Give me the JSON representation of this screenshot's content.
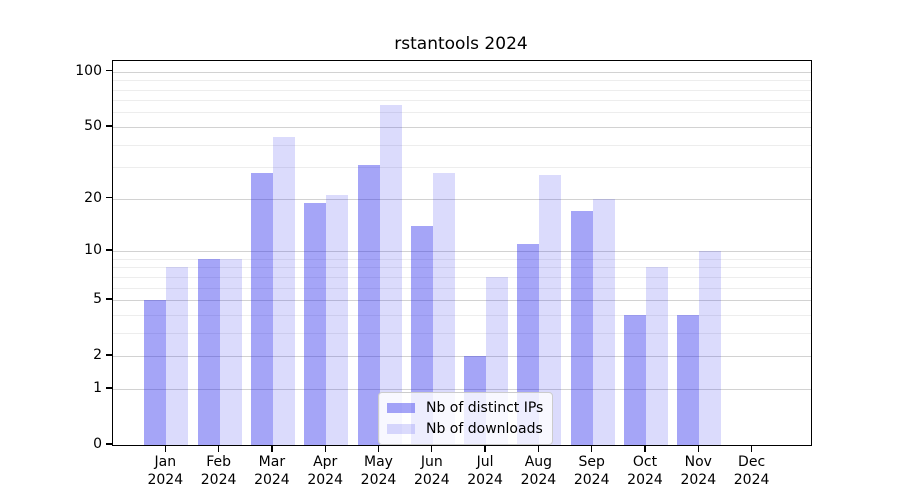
{
  "title": "rstantools 2024",
  "legend": {
    "items": [
      {
        "label": "Nb of distinct IPs"
      },
      {
        "label": "Nb of downloads"
      }
    ]
  },
  "colors": {
    "bar_dark": "rgba(30,30,235,0.40)",
    "bar_dark_hex": "#a5a5f7",
    "bar_light": "rgba(30,30,235,0.16)",
    "bar_light_hex": "#dbdbfc",
    "grid_major": "#d2d2d2",
    "grid_minor": "#ededed",
    "spine": "#000000"
  },
  "chart_data": {
    "type": "bar",
    "title": "rstantools 2024",
    "xlabel": "",
    "ylabel": "",
    "yscale": "log1p",
    "categories": [
      "Jan 2024",
      "Feb 2024",
      "Mar 2024",
      "Apr 2024",
      "May 2024",
      "Jun 2024",
      "Jul 2024",
      "Aug 2024",
      "Sep 2024",
      "Oct 2024",
      "Nov 2024",
      "Dec 2024"
    ],
    "series": [
      {
        "name": "Nb of distinct IPs",
        "color": "rgba(30,30,235,0.40)",
        "values": [
          5,
          9,
          28,
          19,
          31,
          14,
          2,
          11,
          17,
          4,
          4,
          0
        ]
      },
      {
        "name": "Nb of downloads",
        "color": "rgba(30,30,235,0.16)",
        "values": [
          8,
          9,
          44,
          21,
          66,
          28,
          7,
          27,
          20,
          8,
          10,
          0
        ]
      }
    ],
    "yticks_major": [
      0,
      1,
      2,
      5,
      10,
      20,
      50,
      100
    ],
    "yticks_minor": [
      3,
      4,
      6,
      7,
      8,
      9,
      30,
      40,
      60,
      70,
      80,
      90
    ],
    "ylim": [
      0,
      114
    ],
    "grid": true,
    "legend_position": "lower-center"
  }
}
